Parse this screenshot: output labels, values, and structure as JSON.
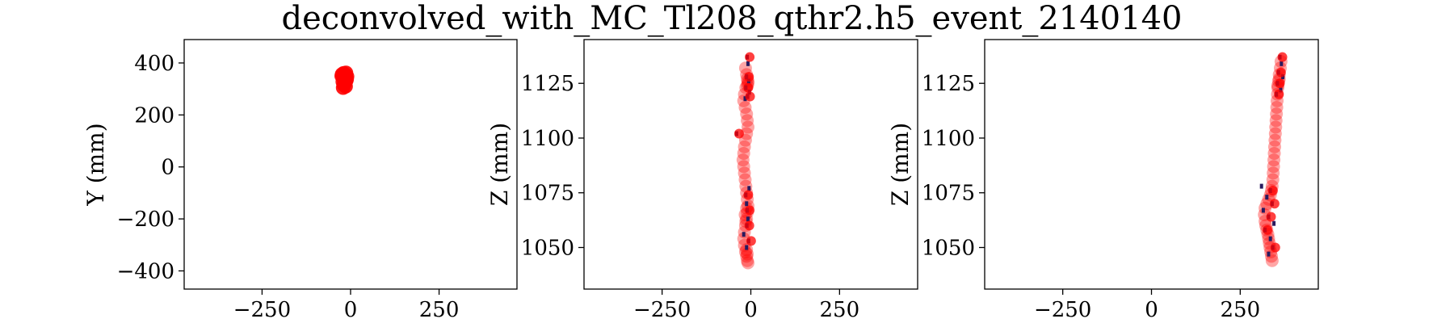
{
  "figure": {
    "suptitle": "deconvolved_with_MC_Tl208_qthr2.h5_event_2140140"
  },
  "colors": {
    "hit": "#ff0000",
    "deconv": "#2a1a5e",
    "background": "#ffffff"
  },
  "chart_data": [
    {
      "type": "scatter",
      "title": "",
      "xlabel": "",
      "ylabel": "Y (mm)",
      "xlim": [
        -470,
        470
      ],
      "ylim": [
        -470,
        490
      ],
      "xticks": [
        -250,
        0,
        250
      ],
      "yticks": [
        -400,
        -200,
        0,
        200,
        400
      ],
      "series": [
        {
          "x": [
            -20,
            -15,
            -10,
            -25,
            -18,
            -12,
            -22,
            -16,
            -19,
            -14,
            -21,
            -17,
            -13,
            -11,
            -24
          ],
          "y": [
            360,
            355,
            348,
            350,
            340,
            333,
            328,
            322,
            316,
            310,
            305,
            345,
            362,
            338,
            356
          ]
        }
      ]
    },
    {
      "type": "scatter",
      "title": "",
      "xlabel": "",
      "ylabel": "Z (mm)",
      "xlim": [
        -470,
        470
      ],
      "ylim": [
        1031,
        1145
      ],
      "xticks": [
        -250,
        0,
        250
      ],
      "yticks": [
        1050,
        1075,
        1100,
        1125
      ],
      "series": [
        {
          "x": [
            -15,
            -12,
            -10,
            -8,
            -14,
            -18,
            -20,
            -16,
            -12,
            -10,
            -8,
            -12,
            -15,
            -18,
            -20,
            -22,
            -20,
            -18,
            -16,
            -14,
            -12,
            -10,
            -8,
            -10,
            -12,
            -15,
            -18,
            -20,
            -18,
            -15,
            -12,
            -10,
            -8,
            -10,
            -12,
            -14,
            -16,
            -12,
            -8,
            -10
          ],
          "y": [
            1132,
            1129,
            1127,
            1125,
            1123,
            1120,
            1117,
            1114,
            1111,
            1108,
            1105,
            1102,
            1099,
            1096,
            1093,
            1090,
            1087,
            1084,
            1081,
            1078,
            1075,
            1072,
            1069,
            1066,
            1063,
            1060,
            1057,
            1054,
            1051,
            1048,
            1046,
            1044,
            1043,
            1047,
            1049,
            1062,
            1065,
            1068,
            1126,
            1124
          ]
        },
        {
          "x": [
            -10,
            -8,
            -12,
            -6,
            -14,
            -4,
            -9,
            -16,
            -40,
            -5,
            -14,
            -12,
            -10,
            -8,
            -11,
            -20,
            -6,
            -12
          ],
          "y": [
            1137,
            1134,
            1128,
            1126,
            1123,
            1121,
            1119,
            1118,
            1102,
            1077,
            1074,
            1070,
            1067,
            1063,
            1060,
            1056,
            1053,
            1050
          ]
        }
      ]
    },
    {
      "type": "scatter",
      "title": "",
      "xlabel": "",
      "ylabel": "Z (mm)",
      "xlim": [
        -470,
        470
      ],
      "ylim": [
        1031,
        1145
      ],
      "xticks": [
        -250,
        0,
        250
      ],
      "yticks": [
        1050,
        1075,
        1100,
        1125
      ],
      "series": [
        {
          "x": [
            365,
            363,
            360,
            358,
            356,
            355,
            354,
            353,
            352,
            351,
            350,
            349,
            348,
            347,
            346,
            345,
            344,
            343,
            342,
            340,
            338,
            335,
            330,
            325,
            320,
            318,
            320,
            322,
            325,
            328,
            330,
            332,
            334,
            336,
            338,
            340,
            360,
            356
          ],
          "y": [
            1135,
            1132,
            1129,
            1126,
            1123,
            1120,
            1117,
            1114,
            1111,
            1108,
            1105,
            1102,
            1099,
            1096,
            1093,
            1090,
            1087,
            1084,
            1081,
            1078,
            1076,
            1074,
            1072,
            1070,
            1068,
            1065,
            1062,
            1060,
            1058,
            1056,
            1054,
            1052,
            1050,
            1048,
            1046,
            1044,
            1127,
            1124
          ]
        },
        {
          "x": [
            362,
            366,
            358,
            370,
            355,
            364,
            352,
            310,
            335,
            325,
            340,
            315,
            330,
            345,
            320,
            335,
            342,
            330
          ],
          "y": [
            1137,
            1134,
            1130,
            1128,
            1125,
            1122,
            1120,
            1078,
            1076,
            1073,
            1070,
            1067,
            1064,
            1061,
            1058,
            1054,
            1050,
            1047
          ]
        }
      ]
    }
  ]
}
